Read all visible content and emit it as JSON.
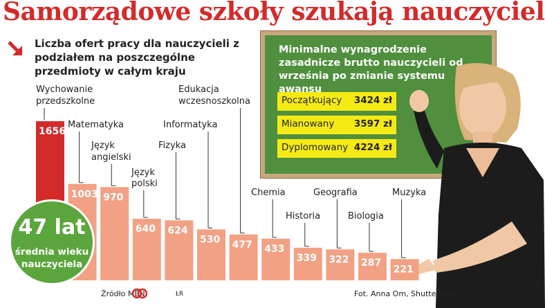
{
  "headline": "Samorządowe szkoły szukają nauczycieli",
  "subtitle": "Liczba ofert pracy dla nauczycieli z podziałem na poszczególne przedmioty w całym kraju",
  "board": {
    "title": "Minimalne wynagrodzenie zasadnicze brutto nauczycieli od września po zmianie systemu awansu",
    "rows": [
      {
        "label": "Początkujący",
        "value": "3424 zł"
      },
      {
        "label": "Mianowany",
        "value": "3597 zł"
      },
      {
        "label": "Dyplomowany",
        "value": "4224 zł"
      }
    ]
  },
  "circle": {
    "big": "47 lat",
    "small": "średnia wieku nauczyciela"
  },
  "source": "Źródło MEN",
  "initials": "ŁR",
  "photo_credit": "Fot. Anna Om, Shutterstock",
  "colors": {
    "headline": "#d42a2a",
    "bar_highlight": "#d42a2a",
    "bar": "#f2a184",
    "board": "#4f8f3d",
    "yellow": "#f6ea15",
    "circle": "#5ba63c"
  },
  "chart_data": {
    "type": "bar",
    "title": "Liczba ofert pracy dla nauczycieli z podziałem na poszczególne przedmioty w całym kraju",
    "xlabel": "",
    "ylabel": "",
    "ylim": [
      0,
      1700
    ],
    "categories": [
      "Wychowanie przedszkolne",
      "Matematyka",
      "Język angielski",
      "Język polski",
      "Fizyka",
      "Informatyka",
      "Edukacja wczesnoszkolna",
      "Chemia",
      "Historia",
      "Geografia",
      "Biologia",
      "Muzyka"
    ],
    "values": [
      1656,
      1003,
      970,
      640,
      624,
      530,
      477,
      433,
      339,
      322,
      287,
      221
    ]
  }
}
